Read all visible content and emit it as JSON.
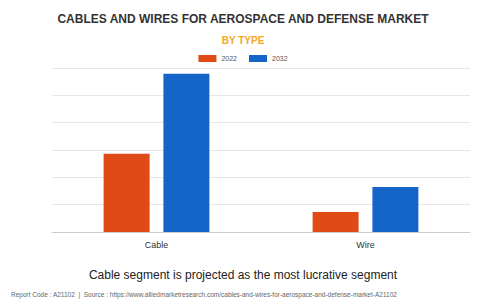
{
  "chart_data": {
    "type": "bar",
    "title": "CABLES AND WIRES FOR AEROSPACE AND DEFENSE MARKET",
    "subtitle": "BY TYPE",
    "categories": [
      "Cable",
      "Wire"
    ],
    "series": [
      {
        "name": "2022",
        "color": "#e04a17",
        "values": [
          2.86,
          0.73
        ]
      },
      {
        "name": "2032",
        "color": "#1565c8",
        "values": [
          5.79,
          1.65
        ]
      }
    ],
    "ylim": [
      0,
      6
    ],
    "yticks": [
      0,
      1,
      2,
      3,
      4,
      5,
      6
    ],
    "grid": true,
    "legend": "top",
    "tick_labels": "x",
    "annotations": [
      "Cable segment is projected as the most lucrative segment",
      "Report Code : A21102  |  Source : https://www.alliedmarketresearch.com/cables-and-wires-for-aerospace-and-defense-market-A21102"
    ]
  }
}
